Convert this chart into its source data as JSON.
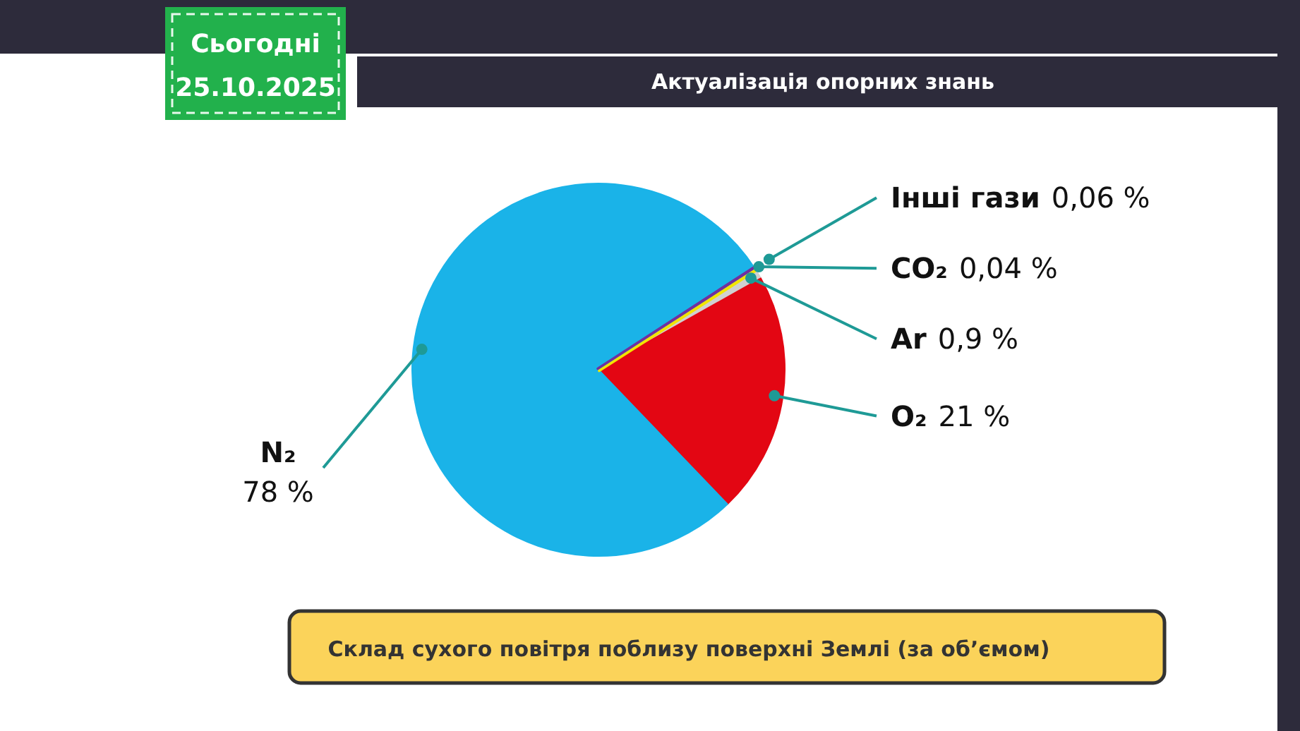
{
  "chart_data": {
    "type": "pie",
    "title": "Актуалізація опорних знань",
    "subtitle": "Склад сухого повітря поблизу поверхні Землі (за об’ємом)",
    "annotations": [
      "Сьогодні",
      "25.10.2025"
    ],
    "categories": [
      "Інші гази",
      "CO₂",
      "Ar",
      "O₂",
      "N₂"
    ],
    "values": [
      0.06,
      0.04,
      0.9,
      21,
      78
    ],
    "colors": [
      "#7030a0",
      "#f2e500",
      "#d0d0d0",
      "#e30613",
      "#1ab3e8"
    ],
    "value_labels": [
      "0,06 %",
      "0,04 %",
      "0,9 %",
      "21 %",
      "78 %"
    ]
  }
}
